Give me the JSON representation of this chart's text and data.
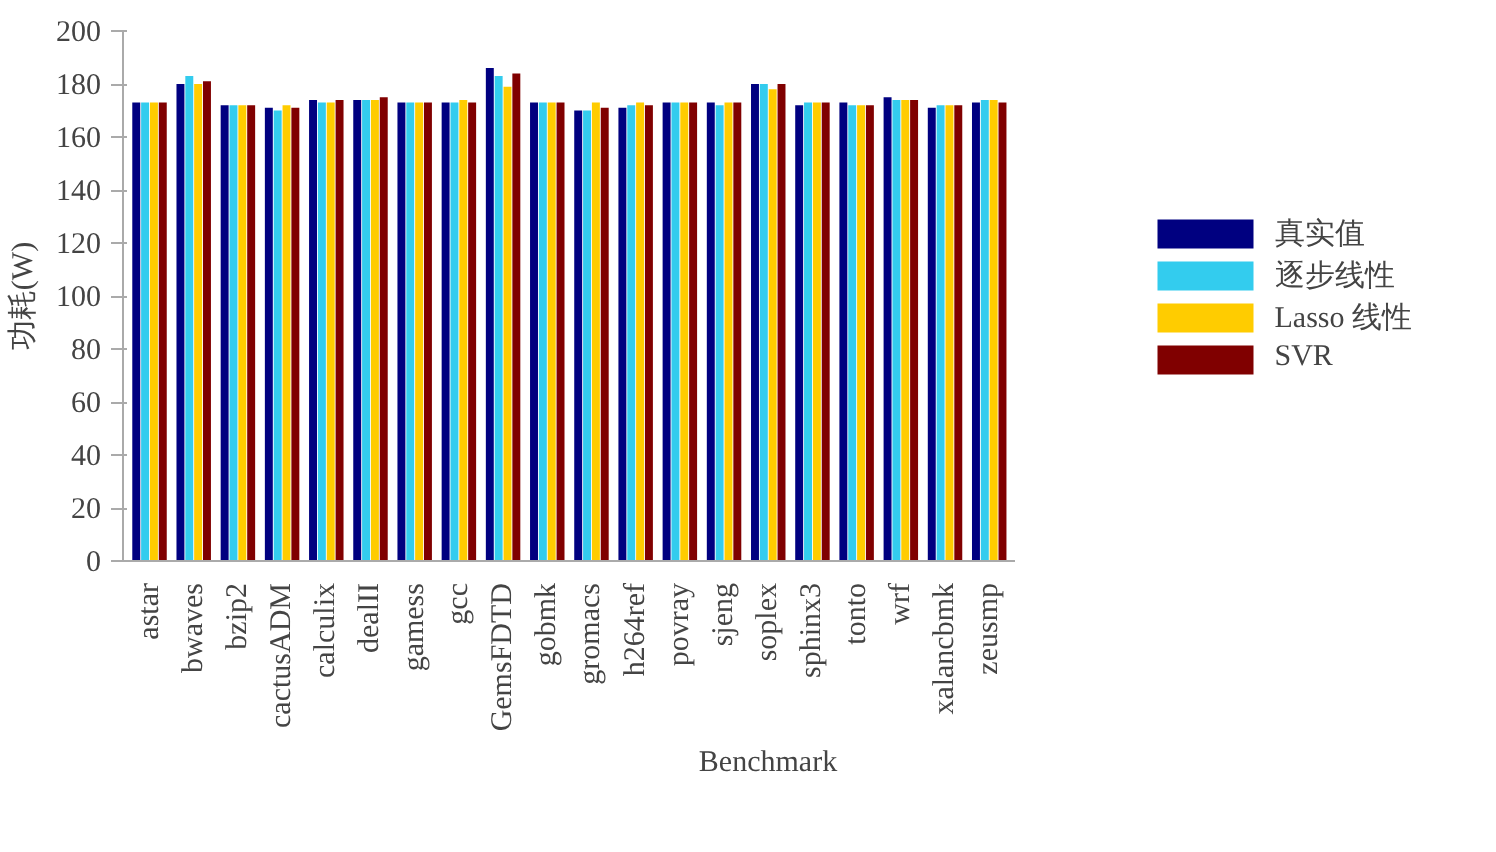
{
  "chart_data": {
    "type": "bar",
    "xlabel": "Benchmark",
    "ylabel": "功耗(W)",
    "categories": [
      "astar",
      "bwaves",
      "bzip2",
      "cactusADM",
      "calculix",
      "dealII",
      "gamess",
      "gcc",
      "GemsFDTD",
      "gobmk",
      "gromacs",
      "h264ref",
      "povray",
      "sjeng",
      "soplex",
      "sphinx3",
      "tonto",
      "wrf",
      "xalancbmk",
      "zeusmp"
    ],
    "series": [
      {
        "name": "真实值",
        "color": "#000080",
        "values": [
          173,
          180,
          172,
          171,
          174,
          174,
          173,
          173,
          186,
          173,
          170,
          171,
          173,
          173,
          180,
          172,
          173,
          175,
          171,
          173
        ]
      },
      {
        "name": "逐步线性",
        "color": "#33ccee",
        "values": [
          173,
          183,
          172,
          170,
          173,
          174,
          173,
          173,
          183,
          173,
          170,
          172,
          173,
          172,
          180,
          173,
          172,
          174,
          172,
          174
        ]
      },
      {
        "name": "Lasso 线性",
        "color": "#ffcc00",
        "values": [
          173,
          180,
          172,
          172,
          173,
          174,
          173,
          174,
          179,
          173,
          173,
          173,
          173,
          173,
          178,
          173,
          172,
          174,
          172,
          174
        ]
      },
      {
        "name": "SVR",
        "color": "#800000",
        "values": [
          173,
          181,
          172,
          171,
          174,
          175,
          173,
          173,
          184,
          173,
          171,
          172,
          173,
          173,
          180,
          173,
          172,
          174,
          172,
          173
        ]
      }
    ],
    "ylim": [
      0,
      200
    ],
    "yticks": [
      0,
      20,
      40,
      60,
      80,
      100,
      120,
      140,
      160,
      180,
      200
    ],
    "grid": false,
    "legend": "right"
  }
}
